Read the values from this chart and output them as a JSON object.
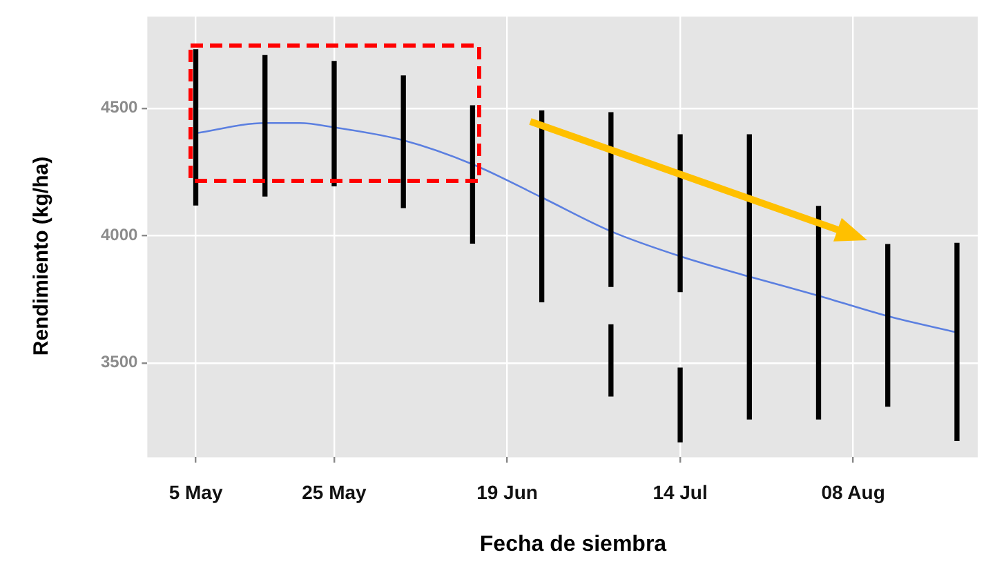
{
  "chart_data": {
    "type": "bar",
    "xlabel": "Fecha de siembra",
    "ylabel": "Rendimiento (kg/ha)",
    "xlim": [
      "--04-28",
      "--08-26"
    ],
    "xticks": [
      {
        "value": "--05-05",
        "label": "5 May"
      },
      {
        "value": "--05-25",
        "label": "25 May"
      },
      {
        "value": "--06-19",
        "label": "19 Jun"
      },
      {
        "value": "--07-14",
        "label": "14 Jul"
      },
      {
        "value": "--08-08",
        "label": "08 Aug"
      }
    ],
    "ylim": [
      3130,
      4860
    ],
    "yticks": [
      3500,
      4000,
      4500
    ],
    "grid": true,
    "legend": false,
    "series": [
      {
        "color": "#000000",
        "x": [
          "--05-05",
          "--05-15",
          "--05-25",
          "--06-04",
          "--06-14",
          "--06-24",
          "--07-04",
          "--07-14",
          "--07-24",
          "--08-03",
          "--08-13",
          "--08-23"
        ],
        "base": [
          4120,
          4155,
          4195,
          4110,
          3970,
          3740,
          3800,
          3780,
          3280,
          3280,
          3330,
          3195
        ],
        "values": [
          610,
          552,
          489,
          517,
          540,
          750,
          683,
          616,
          1116,
          835,
          635,
          775
        ]
      },
      {
        "color": "#000000",
        "x": [
          "--07-04",
          "--07-14"
        ],
        "base": [
          3370,
          3190
        ],
        "values": [
          280,
          290
        ]
      },
      {
        "type": "line",
        "color": "#5b7fe0",
        "x": [
          "--05-05",
          "--05-15",
          "--05-20",
          "--05-25",
          "--06-04",
          "--06-14",
          "--06-24",
          "--07-04",
          "--07-14",
          "--07-24",
          "--08-03",
          "--08-13",
          "--08-23"
        ],
        "values": [
          4402,
          4442,
          4442,
          4425,
          4374,
          4280,
          4150,
          4017,
          3919,
          3839,
          3764,
          3684,
          3620
        ]
      }
    ]
  }
}
